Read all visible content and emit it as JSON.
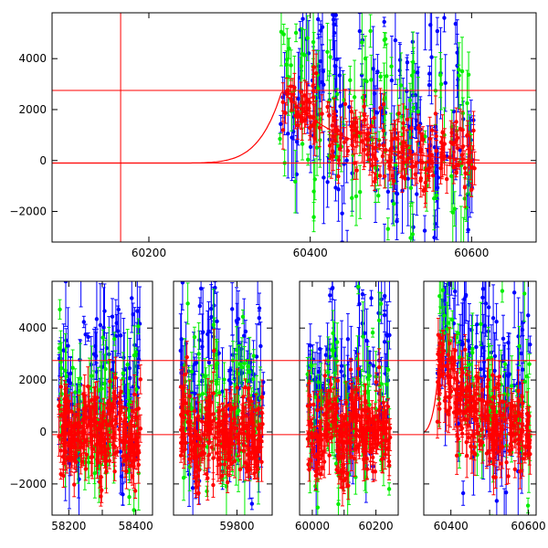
{
  "colors": {
    "red": "#ff0000",
    "green": "#00ee00",
    "blue": "#0000ff",
    "axis": "#000000"
  },
  "chart_data": [
    {
      "type": "scatter",
      "panel": "top",
      "xlim": [
        60080,
        60680
      ],
      "ylim": [
        -3200,
        5800
      ],
      "x_ticks": [
        60200,
        60400,
        60600
      ],
      "y_ticks": [
        -2000,
        0,
        2000,
        4000
      ],
      "x_tick_labels": [
        "60200",
        "60400",
        "60600"
      ],
      "y_tick_labels": [
        "−2000",
        "0",
        "2000",
        "4000"
      ],
      "hlines": [
        2750,
        -100
      ],
      "vlines": [
        60165
      ],
      "model_curve": {
        "color": "red",
        "baseline": -100,
        "peak": 2750,
        "rise_start": 60200,
        "peak_x": 60365,
        "end_x": 60610
      },
      "series": [
        {
          "color": "blue",
          "x_range": [
            60362,
            60605
          ],
          "band": "high",
          "n": 170
        },
        {
          "color": "green",
          "x_range": [
            60362,
            60605
          ],
          "band": "mid",
          "n": 130
        },
        {
          "color": "red",
          "x_range": [
            60362,
            60605
          ],
          "band": "low",
          "n": 230
        }
      ]
    },
    {
      "type": "scatter",
      "panel": "bottom",
      "ylim": [
        -3200,
        5800
      ],
      "y_ticks": [
        -2000,
        0,
        2000,
        4000
      ],
      "y_tick_labels": [
        "−2000",
        "0",
        "2000",
        "4000"
      ],
      "hlines": [
        2750,
        -100
      ],
      "segments": [
        {
          "xlim": [
            58150,
            58450
          ],
          "x_ticks": [
            58200,
            58300,
            58400
          ],
          "x_tick_labels": [
            "58200",
            "",
            "58400"
          ],
          "data_range": [
            58170,
            58415
          ]
        },
        {
          "xlim": [
            59620,
            59900
          ],
          "x_ticks": [
            59800
          ],
          "x_tick_labels": [
            "59800"
          ],
          "data_range": [
            59640,
            59875
          ]
        },
        {
          "xlim": [
            59960,
            60270
          ],
          "x_ticks": [
            60000,
            60100,
            60200
          ],
          "x_tick_labels": [
            "60000",
            "",
            "60200"
          ],
          "data_range": [
            59985,
            60245
          ]
        },
        {
          "xlim": [
            60330,
            60620
          ],
          "x_ticks": [
            60400,
            60500,
            60600
          ],
          "x_tick_labels": [
            "60400",
            "",
            "60600"
          ],
          "data_range": [
            60365,
            60605
          ],
          "has_model": true
        }
      ]
    }
  ]
}
